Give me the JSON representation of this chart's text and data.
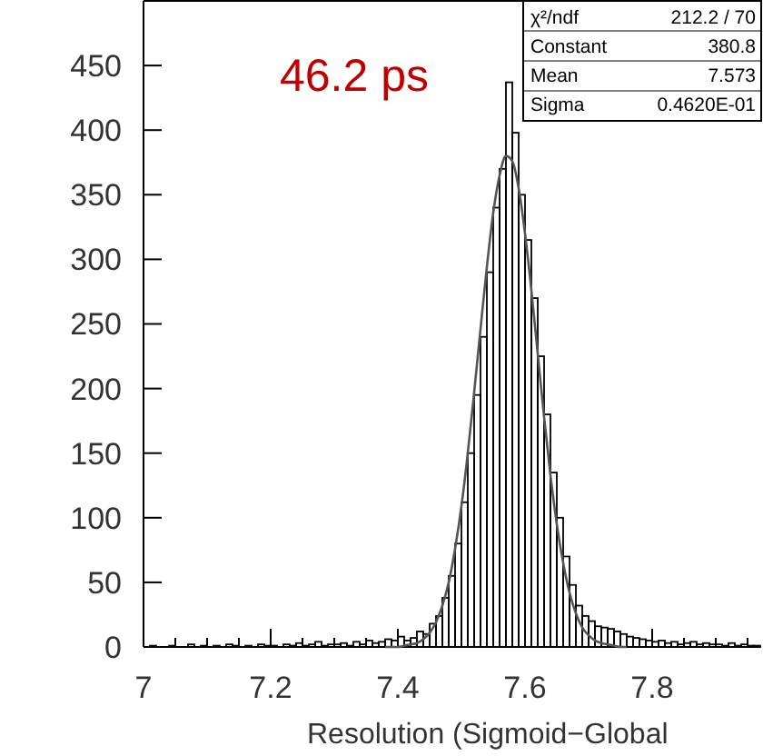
{
  "chart_data": {
    "type": "histogram",
    "xlabel": "Resolution (Sigmoid−Global",
    "annotations": [
      "46.2 ps",
      "χ²/ndf  212.2  /  70",
      "Constant  380.8",
      "Mean  7.573",
      "Sigma  0.4620E-01"
    ],
    "bins": [
      7.0,
      7.01,
      7.02,
      7.03,
      7.04,
      7.05,
      7.06,
      7.07,
      7.08,
      7.09,
      7.1,
      7.11,
      7.12,
      7.13,
      7.14,
      7.15,
      7.16,
      7.17,
      7.18,
      7.19,
      7.2,
      7.21,
      7.22,
      7.23,
      7.24,
      7.25,
      7.26,
      7.27,
      7.28,
      7.29,
      7.3,
      7.31,
      7.32,
      7.33,
      7.34,
      7.35,
      7.36,
      7.37,
      7.38,
      7.39,
      7.4,
      7.41,
      7.42,
      7.43,
      7.44,
      7.45,
      7.46,
      7.47,
      7.48,
      7.49,
      7.5,
      7.51,
      7.52,
      7.53,
      7.54,
      7.55,
      7.56,
      7.57,
      7.58,
      7.59,
      7.6,
      7.61,
      7.62,
      7.63,
      7.64,
      7.65,
      7.66,
      7.67,
      7.68,
      7.69,
      7.7,
      7.71,
      7.72,
      7.73,
      7.74,
      7.75,
      7.76,
      7.77,
      7.78,
      7.79,
      7.8,
      7.81,
      7.82,
      7.83,
      7.84,
      7.85,
      7.86,
      7.87,
      7.88,
      7.89,
      7.9,
      7.91,
      7.92,
      7.93,
      7.94,
      7.95,
      7.96,
      7.97
    ],
    "series": [
      {
        "color": "#000000",
        "values": [
          0,
          1,
          0,
          0,
          1,
          0,
          0,
          2,
          0,
          1,
          0,
          1,
          0,
          2,
          1,
          0,
          1,
          0,
          2,
          1,
          1,
          0,
          2,
          1,
          3,
          1,
          2,
          4,
          1,
          2,
          2,
          3,
          1,
          4,
          2,
          5,
          3,
          4,
          6,
          5,
          8,
          5,
          7,
          12,
          10,
          18,
          24,
          38,
          55,
          80,
          112,
          150,
          195,
          240,
          290,
          340,
          370,
          437,
          398,
          350,
          315,
          270,
          225,
          180,
          135,
          100,
          70,
          48,
          32,
          24,
          20,
          16,
          15,
          14,
          12,
          10,
          8,
          7,
          6,
          5,
          4,
          5,
          3,
          4,
          2,
          3,
          4,
          2,
          3,
          2,
          2,
          1,
          3,
          1,
          2,
          1,
          1
        ]
      },
      {
        "type": "line",
        "color": "#555555",
        "x": [
          7.38,
          7.39,
          7.4,
          7.41,
          7.42,
          7.43,
          7.44,
          7.45,
          7.46,
          7.47,
          7.48,
          7.49,
          7.5,
          7.51,
          7.52,
          7.53,
          7.54,
          7.55,
          7.56,
          7.57,
          7.58,
          7.59,
          7.6,
          7.61,
          7.62,
          7.63,
          7.64,
          7.65,
          7.66,
          7.67,
          7.68,
          7.69,
          7.7,
          7.71,
          7.72,
          7.73,
          7.74,
          7.75,
          7.76
        ],
        "values": [
          0,
          0,
          0,
          1,
          2,
          3,
          6,
          11,
          19,
          32,
          50,
          76,
          109,
          150,
          197,
          246,
          294,
          336,
          365,
          380,
          376,
          355,
          320,
          276,
          227,
          178,
          133,
          95,
          65,
          42,
          26,
          15,
          9,
          5,
          3,
          2,
          1,
          0,
          0
        ]
      }
    ],
    "xlim": [
      7,
      7.97
    ],
    "ylim": [
      0,
      500
    ],
    "xticks": [
      7,
      {
        "value": 7.05,
        "label": null
      },
      {
        "value": 7.1,
        "label": null
      },
      {
        "value": 7.15,
        "label": null
      },
      7.2,
      {
        "value": 7.25,
        "label": null
      },
      {
        "value": 7.3,
        "label": null
      },
      {
        "value": 7.35,
        "label": null
      },
      7.4,
      {
        "value": 7.45,
        "label": null
      },
      {
        "value": 7.5,
        "label": null
      },
      {
        "value": 7.55,
        "label": null
      },
      7.6,
      {
        "value": 7.65,
        "label": null
      },
      {
        "value": 7.7,
        "label": null
      },
      {
        "value": 7.75,
        "label": null
      },
      7.8,
      {
        "value": 7.85,
        "label": null
      },
      {
        "value": 7.9,
        "label": null
      },
      {
        "value": 7.95,
        "label": null
      }
    ],
    "yticks": [
      0,
      50,
      100,
      150,
      200,
      250,
      300,
      350,
      400,
      450
    ]
  }
}
